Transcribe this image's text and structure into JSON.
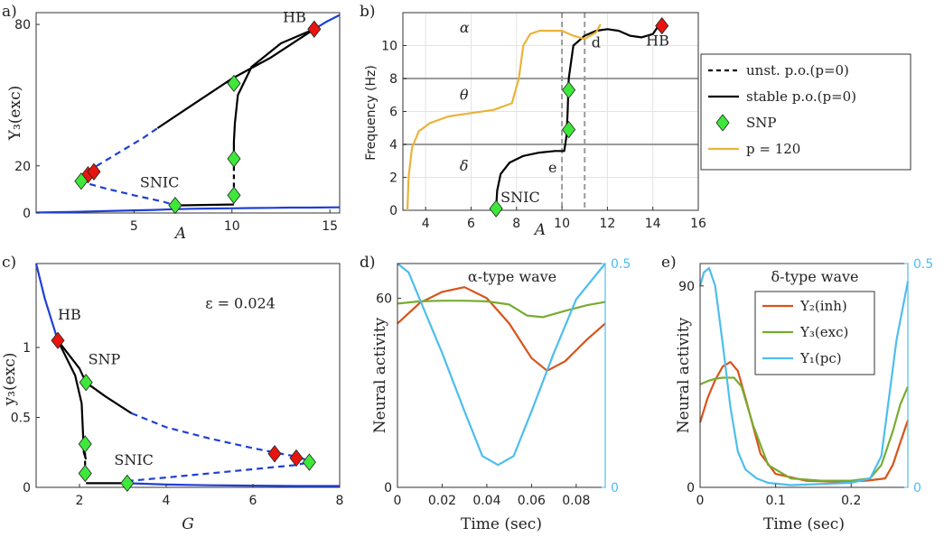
{
  "colors": {
    "branch": "#1f3fd6",
    "black": "#000000",
    "hb": "#e8140f",
    "snp": "#3ee83a",
    "p120": "#e9b43a",
    "gray": "#9a9a9a",
    "y2": "#d95319",
    "y3": "#77ac30",
    "y1": "#4dbeee"
  },
  "chart_data": [
    {
      "id": "a",
      "panel_label": "a)",
      "type": "line",
      "xlabel": "A",
      "ylabel": "Y₃(exc)",
      "xlim": [
        0,
        15.5
      ],
      "ylim": [
        0,
        85
      ],
      "xticks": [
        5,
        10,
        15
      ],
      "yticks": [
        0,
        20,
        80
      ],
      "series": [
        {
          "name": "stable fixed point (low)",
          "style": "solid-blue",
          "x": [
            0,
            2,
            4,
            6,
            7,
            8,
            9,
            10,
            11,
            12,
            13,
            14,
            15.5
          ],
          "y": [
            0.2,
            0.5,
            0.9,
            1.3,
            1.6,
            1.8,
            1.9,
            2.0,
            2.1,
            2.2,
            2.3,
            2.3,
            2.4
          ]
        },
        {
          "name": "unstable fixed point (middle)",
          "style": "dashed-blue",
          "x": [
            2.2,
            3.5,
            5,
            6.5,
            7.1
          ],
          "y": [
            13.5,
            10.5,
            7.5,
            4.8,
            3.2
          ]
        },
        {
          "name": "unstable fixed point (upper)",
          "style": "dashed-blue",
          "x": [
            2.6,
            3.5,
            4.5,
            5.5,
            6.2
          ],
          "y": [
            17.5,
            22,
            27,
            32,
            36
          ]
        },
        {
          "name": "stable fixed point (upper)",
          "style": "solid-blue",
          "x": [
            14.2,
            14.8,
            15.5
          ],
          "y": [
            78,
            81,
            84
          ]
        },
        {
          "name": "stable p.o. max",
          "style": "solid-black",
          "x": [
            6.2,
            8,
            10,
            12,
            14.2
          ],
          "y": [
            36,
            46,
            57,
            66,
            78
          ]
        },
        {
          "name": "stable p.o. branch",
          "style": "solid-black",
          "x": [
            14.2,
            12.5,
            11,
            10.3,
            10.15,
            10.1,
            10.1
          ],
          "y": [
            78,
            72,
            62,
            50,
            38,
            30,
            22
          ]
        },
        {
          "name": "stable p.o. low segment",
          "style": "solid-black",
          "x": [
            7.1,
            8.5,
            10.1
          ],
          "y": [
            3.2,
            3.4,
            3.6
          ]
        },
        {
          "name": "unstable p.o. segment",
          "style": "dashed-black",
          "x": [
            10.1,
            10.1
          ],
          "y": [
            7.5,
            22
          ]
        }
      ],
      "markers": [
        {
          "type": "HB",
          "x": [
            2.65,
            2.95,
            14.2
          ],
          "y": [
            16.2,
            17.5,
            78
          ]
        },
        {
          "type": "SNP",
          "x": [
            2.3,
            7.1,
            10.1,
            10.1,
            10.1
          ],
          "y": [
            13.5,
            3.2,
            7.5,
            23,
            55
          ]
        }
      ],
      "annotations": [
        {
          "text": "HB",
          "x": 12.6,
          "y": 81
        },
        {
          "text": "SNIC",
          "x": 5.3,
          "y": 11
        }
      ]
    },
    {
      "id": "b",
      "panel_label": "b)",
      "type": "line",
      "xlabel": "A",
      "ylabel": "Frequency (Hz)",
      "xlim": [
        3,
        16
      ],
      "ylim": [
        0,
        12
      ],
      "xticks": [
        4,
        6,
        8,
        10,
        12,
        14,
        16
      ],
      "yticks": [
        0,
        2,
        4,
        6,
        8,
        10
      ],
      "grid": true,
      "hlines": [
        4,
        8
      ],
      "vlines": [
        10,
        11
      ],
      "series": [
        {
          "name": "stable p.o.(p=0)",
          "style": "solid-black",
          "x": [
            7.1,
            7.15,
            7.3,
            7.7,
            8.3,
            9.0,
            9.7,
            10.1,
            10.2,
            10.25,
            10.3,
            10.5,
            11,
            11.5,
            12,
            12.5,
            13,
            13.5,
            14,
            14.2
          ],
          "y": [
            0.1,
            1.2,
            2.2,
            2.9,
            3.3,
            3.5,
            3.6,
            3.6,
            4.5,
            6,
            8,
            10,
            10.6,
            10.9,
            11.0,
            10.9,
            10.6,
            10.5,
            10.7,
            11.1
          ]
        },
        {
          "name": "p = 120",
          "style": "solid-orange",
          "x": [
            3.2,
            3.25,
            3.4,
            3.7,
            4.2,
            5,
            6,
            7,
            7.8,
            8.1,
            8.3,
            8.6,
            9,
            10,
            10.5,
            11,
            11.5,
            11.7
          ],
          "y": [
            0,
            2,
            3.8,
            4.8,
            5.3,
            5.7,
            5.9,
            6.1,
            6.5,
            8,
            10,
            10.7,
            10.9,
            10.9,
            10.6,
            10.4,
            10.8,
            11.3
          ]
        }
      ],
      "markers": [
        {
          "type": "HB",
          "x": [
            14.4
          ],
          "y": [
            11.2
          ]
        },
        {
          "type": "SNP",
          "x": [
            7.1,
            10.3,
            10.3
          ],
          "y": [
            0.1,
            4.9,
            7.3
          ]
        }
      ],
      "annotations": [
        {
          "text": "α",
          "x": 5.5,
          "y": 10.8
        },
        {
          "text": "θ",
          "x": 5.5,
          "y": 6.7
        },
        {
          "text": "δ",
          "x": 5.5,
          "y": 2.4
        },
        {
          "text": "e",
          "x": 9.4,
          "y": 2.3
        },
        {
          "text": "d",
          "x": 11.3,
          "y": 9.9
        },
        {
          "text": "HB",
          "x": 13.7,
          "y": 10.0
        },
        {
          "text": "SNIC",
          "x": 7.3,
          "y": 0.5
        }
      ],
      "legend": {
        "placement": "right-outside",
        "entries": [
          {
            "label": "unst. p.o.(p=0)",
            "style": "dashed-black"
          },
          {
            "label": "stable p.o.(p=0)",
            "style": "solid-black"
          },
          {
            "label": "SNP",
            "style": "marker-snp"
          },
          {
            "label": "p = 120",
            "style": "solid-orange"
          }
        ]
      }
    },
    {
      "id": "c",
      "panel_label": "c)",
      "type": "line",
      "xlabel": "G",
      "ylabel": "y₃(exc)",
      "xlim": [
        1,
        8
      ],
      "ylim": [
        0,
        1.6
      ],
      "xticks": [
        2,
        4,
        6,
        8
      ],
      "yticks": [
        0,
        0.5,
        1
      ],
      "series": [
        {
          "name": "stable fixed point (upper)",
          "style": "solid-blue",
          "x": [
            1,
            1.2,
            1.4,
            1.5
          ],
          "y": [
            1.6,
            1.35,
            1.15,
            1.05
          ]
        },
        {
          "name": "stable fixed point (low)",
          "style": "solid-blue",
          "x": [
            3.1,
            4,
            5,
            6,
            7,
            8
          ],
          "y": [
            0.03,
            0.02,
            0.015,
            0.012,
            0.01,
            0.01
          ]
        },
        {
          "name": "unstable fixed point (upper)",
          "style": "dashed-blue",
          "x": [
            3.2,
            4,
            5,
            6,
            6.5,
            7,
            7.3
          ],
          "y": [
            0.53,
            0.43,
            0.35,
            0.28,
            0.25,
            0.22,
            0.19
          ]
        },
        {
          "name": "unstable fixed point (lower)",
          "style": "dashed-blue",
          "x": [
            3.1,
            4,
            5,
            6,
            7,
            7.3
          ],
          "y": [
            0.045,
            0.07,
            0.1,
            0.13,
            0.16,
            0.18
          ]
        },
        {
          "name": "stable p.o. upper",
          "style": "solid-black",
          "x": [
            1.5,
            2,
            2.15,
            2.6,
            3.2
          ],
          "y": [
            1.05,
            0.85,
            0.75,
            0.65,
            0.53
          ]
        },
        {
          "name": "stable p.o. branch",
          "style": "solid-black",
          "x": [
            1.5,
            1.9,
            2.05,
            2.08,
            2.1,
            2.15
          ],
          "y": [
            1.05,
            0.8,
            0.6,
            0.4,
            0.25,
            0.2
          ]
        },
        {
          "name": "stable p.o. low",
          "style": "solid-black",
          "x": [
            2.15,
            2.6,
            3.1
          ],
          "y": [
            0.03,
            0.03,
            0.03
          ]
        },
        {
          "name": "unstable p.o. segment",
          "style": "dashed-black",
          "x": [
            2.13,
            2.13
          ],
          "y": [
            0.1,
            0.3
          ]
        }
      ],
      "markers": [
        {
          "type": "HB",
          "x": [
            1.5,
            6.5,
            7.0
          ],
          "y": [
            1.05,
            0.24,
            0.21
          ]
        },
        {
          "type": "SNP",
          "x": [
            2.15,
            2.13,
            2.13,
            3.1,
            7.3
          ],
          "y": [
            0.75,
            0.31,
            0.1,
            0.03,
            0.18
          ]
        }
      ],
      "annotations": [
        {
          "text": "HB",
          "x": 1.5,
          "y": 1.2
        },
        {
          "text": "SNP",
          "x": 2.2,
          "y": 0.88
        },
        {
          "text": "SNIC",
          "x": 2.8,
          "y": 0.16
        },
        {
          "text": "ε = 0.024",
          "x": 4.9,
          "y": 1.28
        }
      ]
    },
    {
      "id": "d",
      "panel_label": "d)",
      "type": "line",
      "title": "α-type wave",
      "xlabel": "Time (sec)",
      "ylabel": "Neural activity",
      "xlim": [
        0,
        0.093
      ],
      "ylim": [
        0,
        71
      ],
      "y2lim": [
        0,
        0.5
      ],
      "xticks": [
        0,
        0.02,
        0.04,
        0.06,
        0.08
      ],
      "xtick_labels": [
        "0",
        "0.02",
        "0.04",
        "0.06",
        "0.08"
      ],
      "yticks": [
        0,
        60
      ],
      "y2ticks": [
        0,
        0.5
      ],
      "series": [
        {
          "name": "Y₂(inh)",
          "axis": "left",
          "color_key": "y2",
          "x": [
            0,
            0.01,
            0.02,
            0.03,
            0.04,
            0.05,
            0.06,
            0.067,
            0.075,
            0.085,
            0.093
          ],
          "y": [
            52,
            58.5,
            62,
            63.5,
            60,
            52,
            41,
            37,
            40,
            47,
            52
          ]
        },
        {
          "name": "Y₃(exc)",
          "axis": "left",
          "color_key": "y3",
          "x": [
            0,
            0.01,
            0.02,
            0.03,
            0.04,
            0.05,
            0.058,
            0.065,
            0.075,
            0.085,
            0.093
          ],
          "y": [
            58.3,
            59,
            59.2,
            59.2,
            59,
            58,
            54.5,
            54,
            56,
            57.8,
            58.8
          ]
        },
        {
          "name": "Y₁(pc)",
          "axis": "right",
          "color_key": "y1",
          "x": [
            0,
            0.005,
            0.01,
            0.02,
            0.03,
            0.038,
            0.045,
            0.052,
            0.06,
            0.07,
            0.08,
            0.093
          ],
          "y": [
            0.5,
            0.48,
            0.42,
            0.3,
            0.17,
            0.07,
            0.05,
            0.07,
            0.17,
            0.3,
            0.42,
            0.5
          ]
        }
      ]
    },
    {
      "id": "e",
      "panel_label": "e)",
      "type": "line",
      "title": "δ-type wave",
      "xlabel": "Time (sec)",
      "ylabel": "Neural activity",
      "xlim": [
        0,
        0.275
      ],
      "ylim": [
        0,
        100
      ],
      "y2lim": [
        0,
        0.5
      ],
      "xticks": [
        0,
        0.1,
        0.2
      ],
      "xtick_labels": [
        "0",
        "0.1",
        "0.2"
      ],
      "yticks": [
        0,
        90
      ],
      "y2ticks": [
        0,
        0.5
      ],
      "series": [
        {
          "name": "Y₂(inh)",
          "axis": "left",
          "color_key": "y2",
          "x": [
            0,
            0.01,
            0.02,
            0.03,
            0.04,
            0.05,
            0.06,
            0.08,
            0.1,
            0.14,
            0.18,
            0.22,
            0.245,
            0.255,
            0.265,
            0.275
          ],
          "y": [
            29,
            40,
            48,
            54,
            56,
            52,
            40,
            15,
            6,
            3,
            2.5,
            3,
            4,
            10,
            20,
            30
          ]
        },
        {
          "name": "Y₃(exc)",
          "axis": "left",
          "color_key": "y3",
          "x": [
            0,
            0.01,
            0.02,
            0.03,
            0.045,
            0.055,
            0.07,
            0.09,
            0.12,
            0.16,
            0.2,
            0.225,
            0.24,
            0.255,
            0.265,
            0.275
          ],
          "y": [
            46,
            47.5,
            48.5,
            49,
            49,
            45,
            28,
            10,
            4,
            3,
            3,
            4,
            10,
            25,
            37,
            45
          ]
        },
        {
          "name": "Y₁(pc)",
          "axis": "right",
          "color_key": "y1",
          "x": [
            0,
            0.005,
            0.012,
            0.02,
            0.03,
            0.04,
            0.05,
            0.06,
            0.075,
            0.09,
            0.12,
            0.2,
            0.225,
            0.24,
            0.25,
            0.26,
            0.275
          ],
          "y": [
            0.45,
            0.48,
            0.49,
            0.45,
            0.32,
            0.18,
            0.08,
            0.04,
            0.02,
            0.01,
            0.005,
            0.01,
            0.02,
            0.07,
            0.2,
            0.33,
            0.46
          ]
        }
      ],
      "legend": {
        "placement": "top-right",
        "entries": [
          {
            "label": "Y₂(inh)",
            "color_key": "y2"
          },
          {
            "label": "Y₃(exc)",
            "color_key": "y3"
          },
          {
            "label": "Y₁(pc)",
            "color_key": "y1"
          }
        ]
      }
    }
  ]
}
